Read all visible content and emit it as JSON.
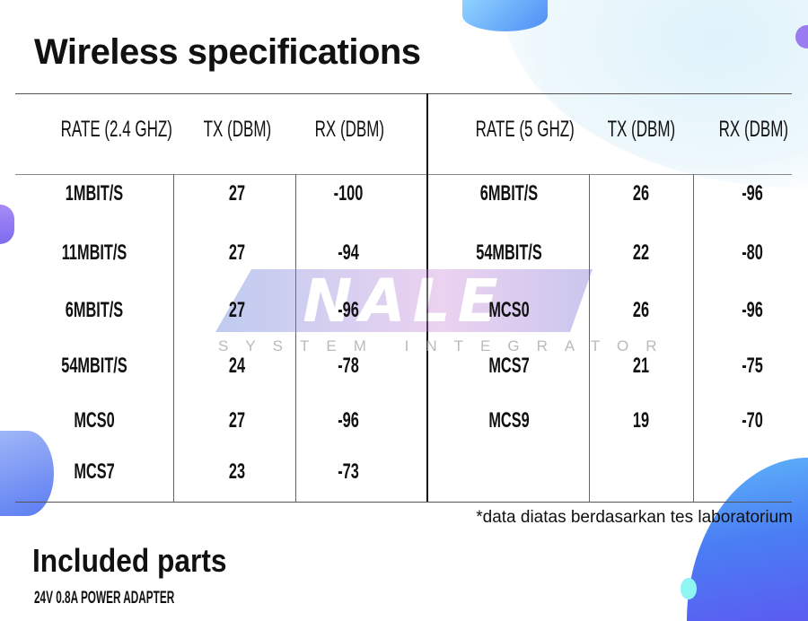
{
  "title": "Wireless specifications",
  "table_24": {
    "headers": [
      "RATE (2.4 GHZ)",
      "TX (DBM)",
      "RX (DBM)"
    ],
    "rows": [
      [
        "1MBIT/S",
        "27",
        "-100"
      ],
      [
        "11MBIT/S",
        "27",
        "-94"
      ],
      [
        "6MBIT/S",
        "27",
        "-96"
      ],
      [
        "54MBIT/S",
        "24",
        "-78"
      ],
      [
        "MCS0",
        "27",
        "-96"
      ],
      [
        "MCS7",
        "23",
        "-73"
      ]
    ]
  },
  "table_5": {
    "headers": [
      "RATE (5 GHZ)",
      "TX (DBM)",
      "RX (DBM)"
    ],
    "rows": [
      [
        "6MBIT/S",
        "26",
        "-96"
      ],
      [
        "54MBIT/S",
        "22",
        "-80"
      ],
      [
        "MCS0",
        "26",
        "-96"
      ],
      [
        "MCS7",
        "21",
        "-75"
      ],
      [
        "MCS9",
        "19",
        "-70"
      ]
    ]
  },
  "watermark": {
    "logo": "NALE",
    "subtitle": "SYSTEM INTEGRATOR"
  },
  "note": "*data diatas berdasarkan tes laboratorium",
  "included": {
    "title": "Included parts",
    "items": [
      "24V 0.8A POWER ADAPTER"
    ]
  }
}
